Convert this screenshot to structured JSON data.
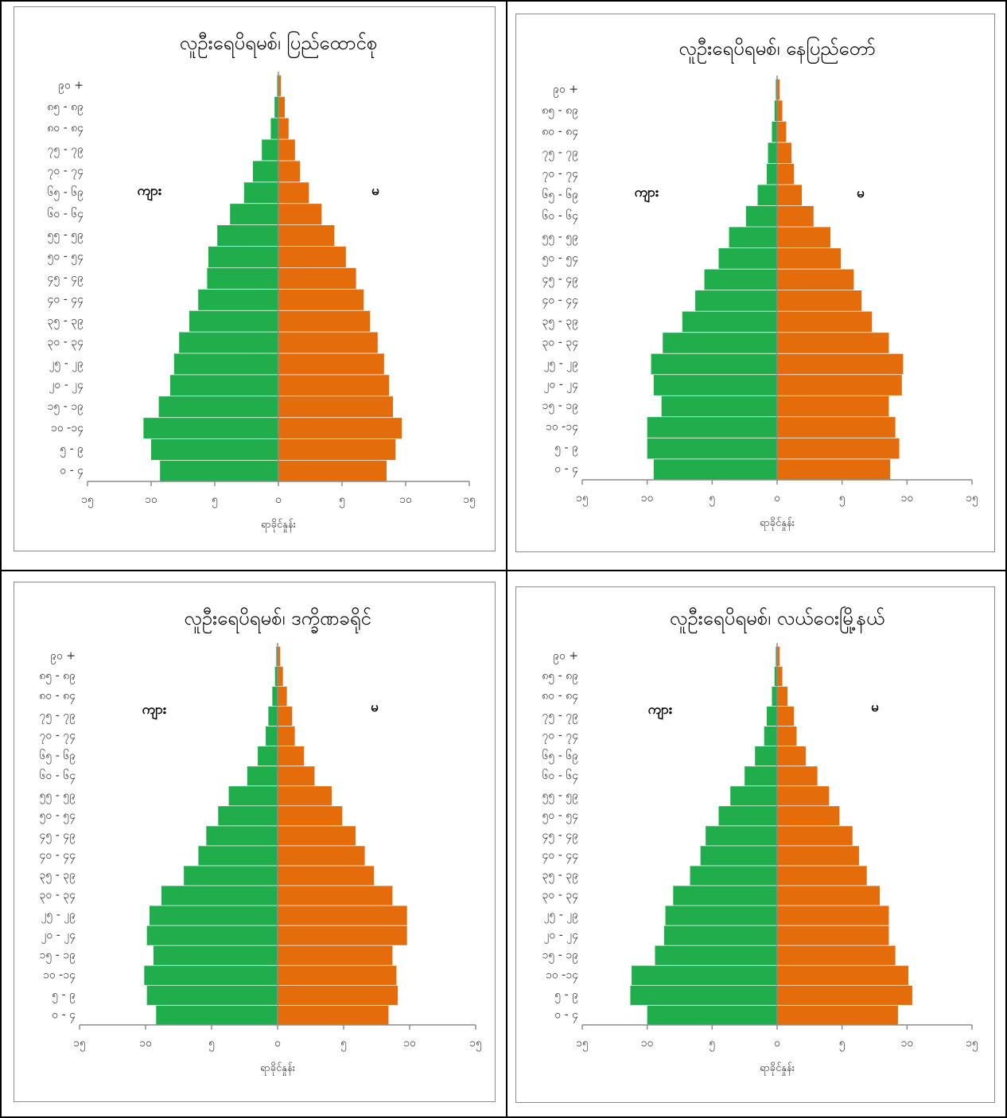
{
  "colors": {
    "male": "#1fae4b",
    "female": "#e46c0a",
    "axis": "#8c8c8c",
    "border": "#000000"
  },
  "chart_data": [
    {
      "type": "bar",
      "orientation": "horizontal",
      "subtype": "population-pyramid",
      "title": "လူဦးရေပိရမစ်၊ ပြည်ထောင်စု",
      "xlabel": "ရာခိုင်နှုန်း",
      "xlim": [
        -15,
        15
      ],
      "xticks": [
        -15,
        -10,
        -5,
        0,
        5,
        10,
        15
      ],
      "xtick_labels": [
        "၁၅",
        "၁၀",
        "၅",
        "၀",
        "၅",
        "၁၀",
        "၁၅"
      ],
      "categories": [
        "၀ - ၄",
        "၅ - ၉",
        "၁၀ -၁၄",
        "၁၅ - ၁၉",
        "၂၀ - ၂၄",
        "၂၅ - ၂၉",
        "၃၀ - ၃၄",
        "၃၅ - ၃၉",
        "၄၀ - ၄၄",
        "၄၅ - ၄၉",
        "၅၀ - ၅၄",
        "၅၅ - ၅၉",
        "၆၀ - ၆၄",
        "၆၅ - ၆၉",
        "၇၀ - ၇၄",
        "၇၅ - ၇၉",
        "၈၀ - ၈၄",
        "၈၅ - ၈၉",
        "၉၀ +"
      ],
      "male_label": "ကျား",
      "female_label": "မ",
      "series": [
        {
          "name": "ကျား",
          "values": [
            9.3,
            10.0,
            10.6,
            9.4,
            8.5,
            8.2,
            7.8,
            7.0,
            6.3,
            5.6,
            5.5,
            4.8,
            3.8,
            2.7,
            2.0,
            1.3,
            0.6,
            0.3,
            0.1
          ]
        },
        {
          "name": "မ",
          "values": [
            8.5,
            9.2,
            9.7,
            9.0,
            8.7,
            8.3,
            7.8,
            7.2,
            6.7,
            6.1,
            5.3,
            4.4,
            3.4,
            2.4,
            1.7,
            1.3,
            0.8,
            0.5,
            0.2
          ]
        }
      ]
    },
    {
      "type": "bar",
      "orientation": "horizontal",
      "subtype": "population-pyramid",
      "title": "လူဦးရေပိရမစ်၊ နေပြည်တော်",
      "xlabel": "ရာခိုင်နှုန်း",
      "xlim": [
        -15,
        15
      ],
      "xticks": [
        -15,
        -10,
        -5,
        0,
        5,
        10,
        15
      ],
      "xtick_labels": [
        "၁၅",
        "၁၀",
        "၅",
        "၀",
        "၅",
        "၁၀",
        "၁၅"
      ],
      "categories": [
        "၀ - ၄",
        "၅ - ၉",
        "၁၀ -၁၄",
        "၁၅ - ၁၉",
        "၂၀ - ၂၄",
        "၂၅ - ၂၉",
        "၃၀ - ၃၄",
        "၃၅ - ၃၉",
        "၄၀ - ၄၄",
        "၄၅ - ၄၉",
        "၅၀ - ၅၄",
        "၅၅ - ၅၉",
        "၆၀ - ၆၄",
        "၆၅ - ၆၉",
        "၇၀ - ၇၄",
        "၇၅ - ၇၉",
        "၈၀ - ၈၄",
        "၈၅ - ၈၉",
        "၉၀ +"
      ],
      "male_label": "ကျား",
      "female_label": "မ",
      "series": [
        {
          "name": "ကျား",
          "values": [
            9.5,
            10.0,
            10.0,
            8.9,
            9.5,
            9.7,
            8.8,
            7.3,
            6.3,
            5.6,
            4.5,
            3.7,
            2.4,
            1.5,
            0.8,
            0.7,
            0.4,
            0.2,
            0.1
          ]
        },
        {
          "name": "မ",
          "values": [
            8.7,
            9.4,
            9.1,
            8.6,
            9.6,
            9.7,
            8.6,
            7.3,
            6.5,
            5.9,
            4.9,
            4.1,
            2.8,
            1.9,
            1.3,
            1.1,
            0.7,
            0.4,
            0.2
          ]
        }
      ]
    },
    {
      "type": "bar",
      "orientation": "horizontal",
      "subtype": "population-pyramid",
      "title": "လူဦးရေပိရမစ်၊ ဒက္ခိဏခရိုင်",
      "xlabel": "ရာခိုင်နှုန်း",
      "xlim": [
        -15,
        15
      ],
      "xticks": [
        -15,
        -10,
        -5,
        0,
        5,
        10,
        15
      ],
      "xtick_labels": [
        "၁၅",
        "၁၀",
        "၅",
        "၀",
        "၅",
        "၁၀",
        "၁၅"
      ],
      "categories": [
        "၀ - ၄",
        "၅ - ၉",
        "၁၀ -၁၄",
        "၁၅ - ၁၉",
        "၂၀ - ၂၄",
        "၂၅ - ၂၉",
        "၃၀ - ၃၄",
        "၃၅ - ၃၉",
        "၄၀ - ၄၄",
        "၄၅ - ၄၉",
        "၅၀ - ၅၄",
        "၅၅ - ၅၉",
        "၆၀ - ၆၄",
        "၆၅ - ၆၉",
        "၇၀ - ၇၄",
        "၇၅ - ၇၉",
        "၈၀ - ၈၄",
        "၈၅ - ၈၉",
        "၉၀ +"
      ],
      "male_label": "ကျား",
      "female_label": "မ",
      "series": [
        {
          "name": "ကျား",
          "values": [
            9.2,
            9.9,
            10.1,
            9.4,
            9.9,
            9.7,
            8.8,
            7.1,
            6.0,
            5.4,
            4.5,
            3.7,
            2.3,
            1.5,
            0.9,
            0.7,
            0.4,
            0.2,
            0.1
          ]
        },
        {
          "name": "မ",
          "values": [
            8.4,
            9.1,
            9.0,
            8.7,
            9.8,
            9.8,
            8.7,
            7.3,
            6.6,
            5.9,
            4.9,
            4.1,
            2.8,
            2.0,
            1.3,
            1.1,
            0.7,
            0.4,
            0.2
          ]
        }
      ]
    },
    {
      "type": "bar",
      "orientation": "horizontal",
      "subtype": "population-pyramid",
      "title": "လူဦးရေပိရမစ်၊ လယ်ဝေးမြို့နယ်",
      "xlabel": "ရာခိုင်နှုန်း",
      "xlim": [
        -15,
        15
      ],
      "xticks": [
        -15,
        -10,
        -5,
        0,
        5,
        10,
        15
      ],
      "xtick_labels": [
        "၁၅",
        "၁၀",
        "၅",
        "၀",
        "၅",
        "၁၀",
        "၁၅"
      ],
      "categories": [
        "၀ - ၄",
        "၅ - ၉",
        "၁၀ -၁၄",
        "၁၅ - ၁၉",
        "၂၀ - ၂၄",
        "၂၅ - ၂၉",
        "၃၀ - ၃၄",
        "၃၅ - ၃၉",
        "၄၀ - ၄၄",
        "၄၅ - ၄၉",
        "၅၀ - ၅၄",
        "၅၅ - ၅၉",
        "၆၀ - ၆၄",
        "၆၅ - ၆၉",
        "၇၀ - ၇၄",
        "၇၅ - ၇၉",
        "၈၀ - ၈၄",
        "၈၅ - ၈၉",
        "၉၀ +"
      ],
      "male_label": "ကျား",
      "female_label": "မ",
      "series": [
        {
          "name": "ကျား",
          "values": [
            10.0,
            11.3,
            11.2,
            9.4,
            8.7,
            8.6,
            8.0,
            6.7,
            5.9,
            5.5,
            4.5,
            3.6,
            2.5,
            1.7,
            1.0,
            0.8,
            0.4,
            0.2,
            0.1
          ]
        },
        {
          "name": "မ",
          "values": [
            9.3,
            10.4,
            10.1,
            9.1,
            8.6,
            8.6,
            7.9,
            6.9,
            6.3,
            5.8,
            4.8,
            4.0,
            3.1,
            2.2,
            1.5,
            1.3,
            0.8,
            0.4,
            0.2
          ]
        }
      ]
    }
  ]
}
